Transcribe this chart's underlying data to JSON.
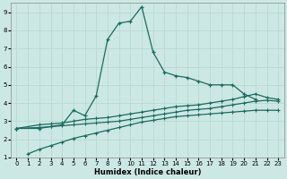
{
  "xlabel": "Humidex (Indice chaleur)",
  "xlim": [
    -0.5,
    23.5
  ],
  "ylim": [
    1,
    9.5
  ],
  "xticks": [
    0,
    1,
    2,
    3,
    4,
    5,
    6,
    7,
    8,
    9,
    10,
    11,
    12,
    13,
    14,
    15,
    16,
    17,
    18,
    19,
    20,
    21,
    22,
    23
  ],
  "yticks": [
    1,
    2,
    3,
    4,
    5,
    6,
    7,
    8,
    9
  ],
  "bg_color": "#cce8e4",
  "line_color": "#1a6b5e",
  "grid_color": "#b8d8d4",
  "series1_x": [
    0,
    2,
    3,
    4,
    5,
    6,
    7,
    8,
    9,
    10,
    11,
    12,
    13,
    14,
    15,
    16,
    17,
    18,
    19,
    20,
    21
  ],
  "series1_y": [
    2.6,
    2.6,
    2.7,
    2.8,
    3.6,
    3.3,
    4.4,
    7.5,
    8.4,
    8.5,
    9.3,
    6.8,
    5.7,
    5.5,
    5.4,
    5.2,
    5.0,
    5.0,
    5.0,
    4.5,
    4.2
  ],
  "series2_x": [
    0,
    2,
    3,
    4,
    5,
    6,
    7,
    8,
    9,
    10,
    11,
    12,
    13,
    14,
    15,
    16,
    17,
    18,
    19,
    20,
    21,
    22,
    23
  ],
  "series2_y": [
    2.6,
    2.8,
    2.85,
    2.9,
    3.0,
    3.1,
    3.15,
    3.2,
    3.3,
    3.4,
    3.5,
    3.6,
    3.7,
    3.8,
    3.85,
    3.9,
    4.0,
    4.1,
    4.2,
    4.35,
    4.5,
    4.3,
    4.2
  ],
  "series3_x": [
    0,
    2,
    3,
    4,
    5,
    6,
    7,
    8,
    9,
    10,
    11,
    12,
    13,
    14,
    15,
    16,
    17,
    18,
    19,
    20,
    21,
    22,
    23
  ],
  "series3_y": [
    2.6,
    2.65,
    2.7,
    2.75,
    2.8,
    2.85,
    2.9,
    2.95,
    3.0,
    3.1,
    3.2,
    3.3,
    3.4,
    3.5,
    3.6,
    3.65,
    3.7,
    3.8,
    3.9,
    4.0,
    4.1,
    4.15,
    4.1
  ],
  "series4_x": [
    1,
    2,
    3,
    4,
    5,
    6,
    7,
    8,
    9,
    10,
    11,
    12,
    13,
    14,
    15,
    16,
    17,
    18,
    19,
    20,
    21,
    22,
    23
  ],
  "series4_y": [
    1.2,
    1.45,
    1.65,
    1.85,
    2.05,
    2.2,
    2.35,
    2.5,
    2.65,
    2.8,
    2.95,
    3.05,
    3.15,
    3.25,
    3.3,
    3.35,
    3.4,
    3.45,
    3.5,
    3.55,
    3.6,
    3.6,
    3.6
  ]
}
